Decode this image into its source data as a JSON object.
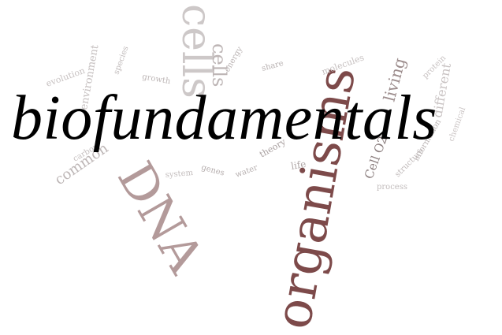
{
  "title": "biofundamentals",
  "word_cloud": {
    "accent_color": "#7d4a4a",
    "light_color": "#c8c2c2",
    "mid_color": "#a99e9e",
    "words": {
      "organisms": "organisms",
      "dna": "DNA",
      "cells": "cells",
      "cells_small": "cells",
      "living": "living",
      "cell_o2": "Cell O2",
      "common": "common",
      "environment": "environment",
      "share": "share",
      "theory": "theory",
      "different": "different",
      "life": "life",
      "evolution": "evolution",
      "information": "information",
      "process": "process",
      "molecules": "molecules",
      "energy": "energy",
      "genes": "genes",
      "system": "system",
      "protein": "protein",
      "species": "species",
      "chemical": "chemical",
      "water": "water",
      "carbon": "carbon",
      "growth": "growth",
      "structure": "structure"
    }
  }
}
